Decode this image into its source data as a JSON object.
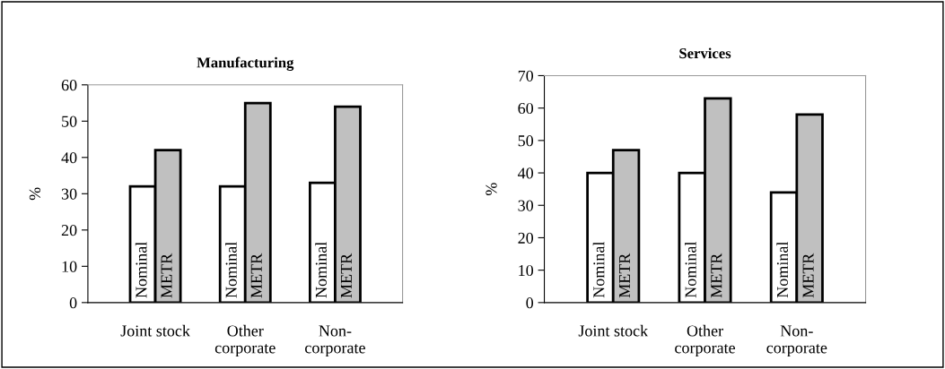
{
  "chart_data": [
    {
      "type": "bar",
      "title": "Manufacturing",
      "ylabel": "%",
      "categories": [
        "Joint stock",
        "Other\ncorporate",
        "Non-\ncorporate"
      ],
      "ylim": [
        0,
        60
      ],
      "yticks": [
        0,
        10,
        20,
        30,
        40,
        50,
        60
      ],
      "grid": false,
      "legend": false,
      "series": [
        {
          "name": "Nominal",
          "color": "#ffffff",
          "values": [
            32,
            32,
            33
          ]
        },
        {
          "name": "METR",
          "color": "#c0c0c0",
          "values": [
            42,
            55,
            54
          ]
        }
      ]
    },
    {
      "type": "bar",
      "title": "Services",
      "ylabel": "%",
      "categories": [
        "Joint stock",
        "Other\ncorporate",
        "Non-\ncorporate"
      ],
      "ylim": [
        0,
        70
      ],
      "yticks": [
        0,
        10,
        20,
        30,
        40,
        50,
        60,
        70
      ],
      "grid": false,
      "legend": false,
      "series": [
        {
          "name": "Nominal",
          "color": "#ffffff",
          "values": [
            40,
            40,
            34
          ]
        },
        {
          "name": "METR",
          "color": "#c0c0c0",
          "values": [
            47,
            63,
            58
          ]
        }
      ]
    }
  ]
}
